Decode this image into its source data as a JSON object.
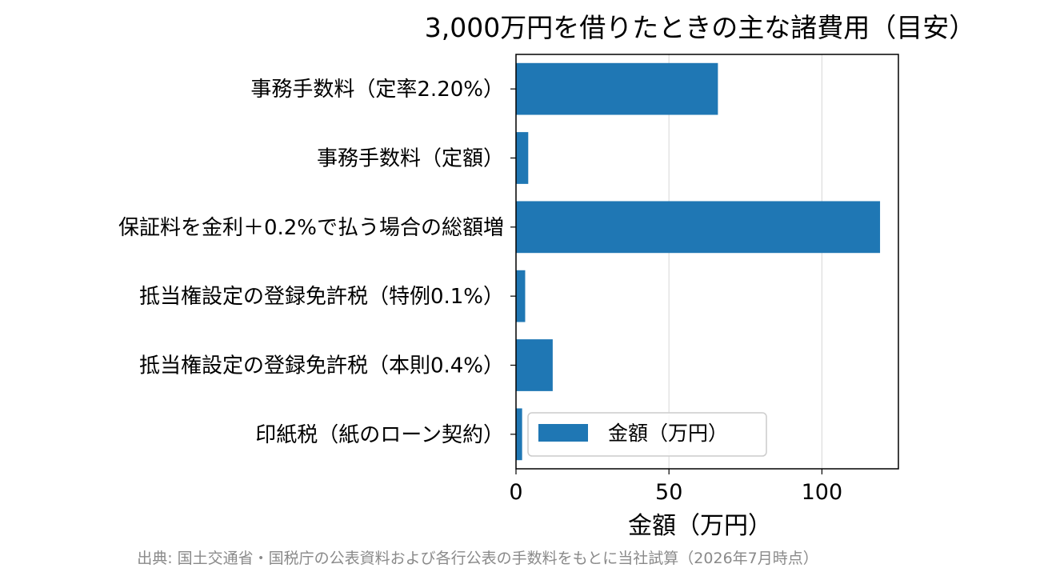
{
  "chart_data": {
    "type": "bar",
    "orientation": "horizontal",
    "title": "3,000万円を借りたときの主な諸費用（目安）",
    "categories": [
      "事務手数料（定率2.20%）",
      "事務手数料（定額）",
      "保証料を金利＋0.2%で払う場合の総額増",
      "抵当権設定の登録免許税（特例0.1%）",
      "抵当権設定の登録免許税（本則0.4%）",
      "印紙税（紙のローン契約）"
    ],
    "series": [
      {
        "name": "金額（万円）",
        "values": [
          66,
          4,
          119,
          3,
          12,
          2
        ],
        "color": "#1f77b4"
      }
    ],
    "xlabel": "金額（万円）",
    "ylabel": "",
    "xlim": [
      0,
      125
    ],
    "xticks": [
      0,
      50,
      100
    ],
    "grid": "vertical",
    "legend_position": "lower-right"
  },
  "source_note": "出典: 国土交通省・国税庁の公表資料および各行公表の手数料をもとに当社試算（2026年7月時点）"
}
